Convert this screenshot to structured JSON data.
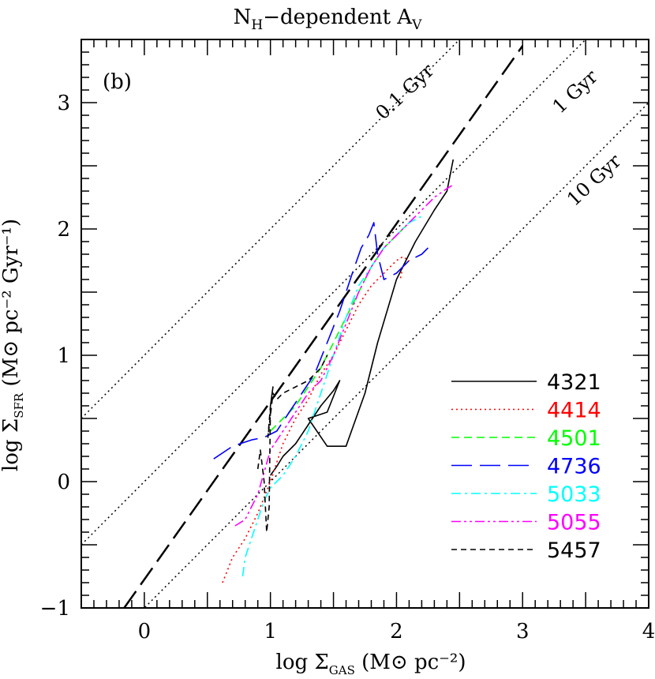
{
  "chart_data": {
    "type": "line",
    "title": "N<sub>H</sub>-dependent A<sub>V</sub>",
    "title_main": "N",
    "title_sub1": "H",
    "title_mid": "−dependent A",
    "title_sub2": "V",
    "panel_label": "(b)",
    "xlabel_pre": "log Σ",
    "xlabel_sub": "GAS",
    "xlabel_post": " (M⊙ pc⁻²)",
    "ylabel_pre": "log Σ",
    "ylabel_sub": "SFR",
    "ylabel_post": " (M⊙ pc⁻² Gyr⁻¹)",
    "xlim": [
      -0.5,
      4
    ],
    "ylim": [
      -1,
      3.5
    ],
    "xticks": [
      0,
      1,
      2,
      3,
      4
    ],
    "xtick_labels": [
      "0",
      "1",
      "2",
      "3",
      "4"
    ],
    "yticks": [
      -1,
      0,
      1,
      2,
      3
    ],
    "ytick_labels": [
      "−1",
      "0",
      "1",
      "2",
      "3"
    ],
    "grid": false,
    "legend_position": "bottom-right",
    "reference_lines": [
      {
        "label": "0.1 Gyr",
        "x": [
          -0.5,
          4
        ],
        "y": [
          0.5,
          5.0
        ],
        "style": "dotted"
      },
      {
        "label": "1 Gyr",
        "x": [
          -0.5,
          4
        ],
        "y": [
          -0.5,
          4.0
        ],
        "style": "dotted"
      },
      {
        "label": "10 Gyr",
        "x": [
          -0.5,
          4
        ],
        "y": [
          -1.5,
          3.0
        ],
        "style": "dotted"
      }
    ],
    "fit_line": {
      "x": [
        -0.16,
        3.0
      ],
      "y": [
        -1.0,
        3.45
      ],
      "style": "long-dash",
      "color": "#000000"
    },
    "series": [
      {
        "name": "4321",
        "color": "#000000",
        "style": "solid",
        "x": [
          1.0,
          1.05,
          1.1,
          1.15,
          1.2,
          1.3,
          1.4,
          1.5,
          1.55,
          1.45,
          1.3,
          1.45,
          1.48,
          1.6,
          1.75,
          1.85,
          2.0,
          2.15,
          2.3,
          2.4,
          2.45
        ],
        "y": [
          0.05,
          0.12,
          0.2,
          0.25,
          0.3,
          0.45,
          0.6,
          0.72,
          0.8,
          0.55,
          0.5,
          0.28,
          0.28,
          0.28,
          0.7,
          1.1,
          1.6,
          1.9,
          2.15,
          2.3,
          2.55
        ]
      },
      {
        "name": "4414",
        "color": "#ff0000",
        "style": "dotted",
        "x": [
          0.62,
          0.7,
          0.8,
          0.9,
          1.0,
          1.1,
          1.2,
          1.3,
          1.4,
          1.5,
          1.6,
          1.7,
          1.8,
          1.9,
          2.0,
          2.05,
          2.1,
          2.05,
          2.03
        ],
        "y": [
          -0.8,
          -0.6,
          -0.45,
          -0.25,
          0.0,
          0.3,
          0.5,
          0.65,
          0.85,
          1.0,
          1.2,
          1.4,
          1.55,
          1.65,
          1.75,
          1.78,
          1.75,
          1.7,
          1.6
        ]
      },
      {
        "name": "4501",
        "color": "#00ff00",
        "style": "dashed",
        "x": [
          1.0,
          1.1,
          1.2,
          1.3,
          1.4,
          1.5,
          1.6,
          1.7,
          1.8,
          1.9,
          2.0,
          2.1
        ],
        "y": [
          0.4,
          0.5,
          0.6,
          0.75,
          0.9,
          1.1,
          1.3,
          1.5,
          1.7,
          1.85,
          1.95,
          2.05
        ]
      },
      {
        "name": "4736",
        "color": "#0000ff",
        "style": "long-dash",
        "x": [
          0.55,
          0.7,
          0.85,
          0.95,
          1.05,
          1.15,
          1.25,
          1.35,
          1.45,
          1.55,
          1.65,
          1.72,
          1.78,
          1.82,
          1.85,
          1.9,
          2.0,
          2.1,
          2.2,
          2.25
        ],
        "y": [
          0.18,
          0.28,
          0.33,
          0.35,
          0.4,
          0.55,
          0.7,
          0.85,
          1.1,
          1.35,
          1.65,
          1.85,
          1.95,
          2.05,
          1.8,
          1.6,
          1.65,
          1.75,
          1.8,
          1.85
        ]
      },
      {
        "name": "5033",
        "color": "#00ffff",
        "style": "dash-dot",
        "x": [
          0.78,
          0.8,
          0.85,
          0.9,
          0.95,
          1.0,
          1.1,
          1.2,
          1.3,
          1.4,
          1.5,
          1.6,
          1.7,
          1.8,
          1.9,
          2.0,
          2.1,
          2.2
        ],
        "y": [
          -0.75,
          -0.6,
          -0.45,
          -0.3,
          -0.15,
          -0.05,
          0.05,
          0.2,
          0.4,
          0.7,
          1.0,
          1.3,
          1.55,
          1.7,
          1.85,
          1.95,
          2.05,
          2.1
        ]
      },
      {
        "name": "5055",
        "color": "#ff00ff",
        "style": "dash-dot-dot",
        "x": [
          0.72,
          0.8,
          0.9,
          1.0,
          1.1,
          1.2,
          1.3,
          1.4,
          1.5,
          1.6,
          1.7,
          1.8,
          1.9,
          2.0,
          2.1,
          2.2,
          2.3,
          2.4,
          2.45
        ],
        "y": [
          -0.35,
          -0.3,
          -0.1,
          0.25,
          0.4,
          0.55,
          0.7,
          0.8,
          1.0,
          1.25,
          1.5,
          1.7,
          1.85,
          1.95,
          2.05,
          2.15,
          2.25,
          2.32,
          2.35
        ]
      },
      {
        "name": "5457",
        "color": "#000000",
        "style": "short-dash",
        "x": [
          0.9,
          0.92,
          0.95,
          0.97,
          0.99,
          1.0,
          1.02,
          1.0,
          0.98,
          1.02,
          1.05,
          1.1,
          1.2,
          1.3,
          1.4,
          1.45
        ],
        "y": [
          0.1,
          0.25,
          0.0,
          -0.4,
          -0.2,
          0.6,
          0.75,
          0.6,
          0.35,
          0.7,
          0.65,
          0.7,
          0.75,
          0.8,
          0.9,
          1.0
        ]
      }
    ]
  }
}
